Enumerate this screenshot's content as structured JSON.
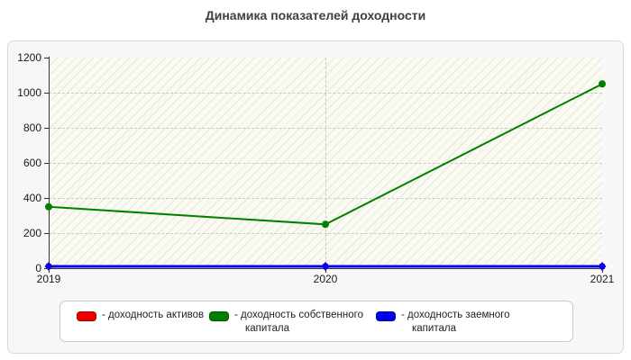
{
  "title": "Динамика показателей доходности",
  "chart_data": {
    "type": "line",
    "title": "Динамика показателей доходности",
    "x": [
      2019,
      2020,
      2021
    ],
    "x_labels": [
      "2019",
      "2020",
      "2021"
    ],
    "ylim": [
      0,
      1200
    ],
    "yticks": [
      0,
      200,
      400,
      600,
      800,
      1000,
      1200
    ],
    "grid": "dashed horizontal at yticks, dashed vertical at interior x ticks",
    "legend_position": "bottom",
    "series": [
      {
        "name": "доходность активов",
        "legend_label": "- доходность активов",
        "color": "#ee0000",
        "marker": "square",
        "values": [
          0,
          0,
          0
        ]
      },
      {
        "name": "доходность собственного капитала",
        "legend_label": "- доходность собственного капитала",
        "color": "#008000",
        "marker": "circle",
        "values": [
          350,
          250,
          1050
        ]
      },
      {
        "name": "доходность заемного капитала",
        "legend_label": "- доходность заемного капитала",
        "color": "#0000f0",
        "marker": "diamond",
        "values": [
          0,
          0,
          0
        ]
      }
    ],
    "colors": {
      "plot_background": "#fbfaf0",
      "hatch_line": "#b0b5c6",
      "gridline": "#c9c9c9",
      "axis": "#333333",
      "container_background": "#f7f7f7",
      "container_border": "#d9d9d9",
      "legend_background": "#ffffff",
      "legend_border": "#c9c9c9",
      "title_color": "#404040",
      "tick_label_color": "#1a1a1a"
    }
  }
}
